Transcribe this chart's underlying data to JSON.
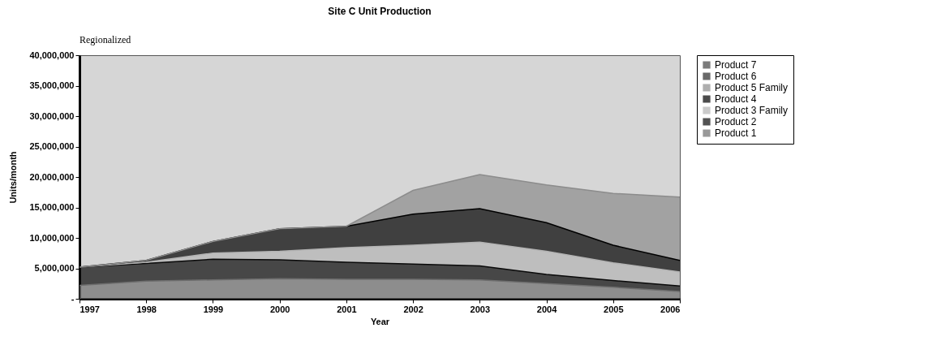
{
  "chart_data": {
    "type": "area",
    "title": "Site C      Unit Production",
    "xlabel": "Year",
    "ylabel": "Units/month",
    "annotations": [
      "Regionalized"
    ],
    "x": [
      1997,
      1998,
      1999,
      2000,
      2001,
      2002,
      2003,
      2004,
      2005,
      2006
    ],
    "stacked": true,
    "series": [
      {
        "name": "Product 1",
        "color": "#6e6e6e",
        "values": [
          2200000,
          2900000,
          3100000,
          3300000,
          3200000,
          3200000,
          3100000,
          2500000,
          1900000,
          1200000
        ]
      },
      {
        "name": "Product 2",
        "color": "#0a0a0a",
        "values": [
          3000000,
          2900000,
          3400000,
          3100000,
          2800000,
          2500000,
          2300000,
          1500000,
          1100000,
          900000
        ]
      },
      {
        "name": "Product 3 Family",
        "color": "#b4b4b4",
        "values": [
          0,
          200000,
          1000000,
          1400000,
          2400000,
          3100000,
          3900000,
          3800000,
          2900000,
          2300000
        ]
      },
      {
        "name": "Product 4",
        "color": "#000000",
        "values": [
          0,
          300000,
          1900000,
          3700000,
          3500000,
          5100000,
          5500000,
          4700000,
          2900000,
          1900000
        ]
      },
      {
        "name": "Product 5 Family",
        "color": "#8c8c8c",
        "values": [
          0,
          0,
          0,
          0,
          0,
          3900000,
          5600000,
          6200000,
          8500000,
          10400000
        ]
      },
      {
        "name": "Product 6",
        "color": "#2a2a2a",
        "values": [
          null,
          null,
          null,
          null,
          null,
          null,
          null,
          null,
          null,
          null
        ]
      },
      {
        "name": "Product 7",
        "color": "#444444",
        "values": [
          null,
          null,
          null,
          null,
          null,
          null,
          null,
          null,
          null,
          null
        ]
      }
    ],
    "xlim": [
      1997,
      2006
    ],
    "xticks": [
      1997,
      1998,
      1999,
      2000,
      2001,
      2002,
      2003,
      2004,
      2005,
      2006
    ],
    "ylim": [
      0,
      40000000
    ],
    "yticks": [
      {
        "value": 0,
        "label": "-"
      },
      {
        "value": 5000000,
        "label": "5,000,000"
      },
      {
        "value": 10000000,
        "label": "10,000,000"
      },
      {
        "value": 15000000,
        "label": "15,000,000"
      },
      {
        "value": 20000000,
        "label": "20,000,000"
      },
      {
        "value": 25000000,
        "label": "25,000,000"
      },
      {
        "value": 30000000,
        "label": "30,000,000"
      },
      {
        "value": 35000000,
        "label": "35,000,000"
      },
      {
        "value": 40000000,
        "label": "40,000,000"
      }
    ],
    "legend": "right",
    "grid": false
  }
}
